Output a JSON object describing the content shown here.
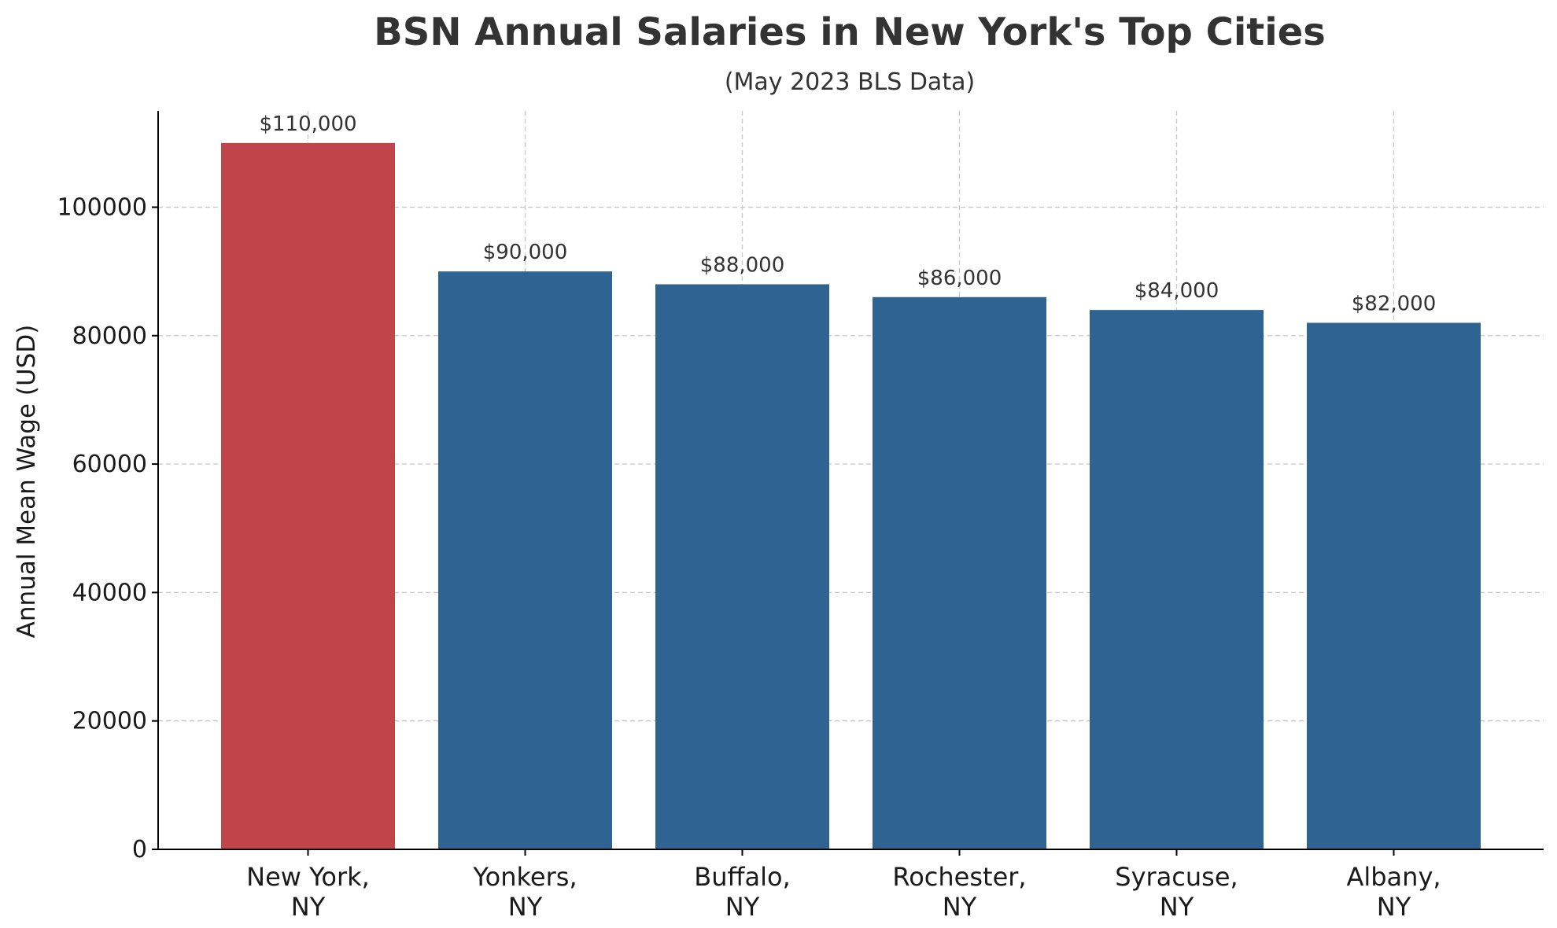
{
  "chart_data": {
    "type": "bar",
    "title": "BSN Annual Salaries in New York's Top Cities",
    "subtitle": "(May 2023 BLS Data)",
    "xlabel": "",
    "ylabel": "Annual Mean Wage (USD)",
    "categories": [
      [
        "New York,",
        "NY"
      ],
      [
        "Yonkers,",
        "NY"
      ],
      [
        "Buffalo,",
        "NY"
      ],
      [
        "Rochester,",
        "NY"
      ],
      [
        "Syracuse,",
        "NY"
      ],
      [
        "Albany,",
        "NY"
      ]
    ],
    "values": [
      110000,
      90000,
      88000,
      86000,
      84000,
      82000
    ],
    "data_labels": [
      "$110,000",
      "$90,000",
      "$88,000",
      "$86,000",
      "$84,000",
      "$82,000"
    ],
    "bar_colors": [
      "#c0454a",
      "#2f6391",
      "#2f6391",
      "#2f6391",
      "#2f6391",
      "#2f6391"
    ],
    "ylim": [
      0,
      115000
    ],
    "yticks": [
      0,
      20000,
      40000,
      60000,
      80000,
      100000
    ],
    "ytick_labels": [
      "0",
      "20000",
      "40000",
      "60000",
      "80000",
      "100000"
    ],
    "grid": true,
    "legend": "none"
  }
}
